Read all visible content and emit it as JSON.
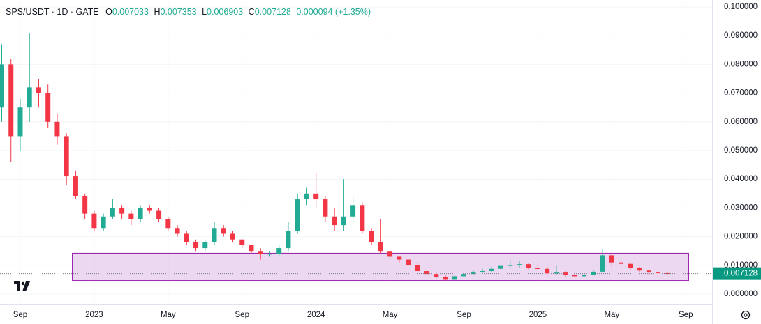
{
  "chart_data": {
    "type": "candlestick",
    "legend": {
      "symbol": "SPS/USDT · 1D · GATE",
      "fields": [
        {
          "key": "O",
          "value": "0.007033"
        },
        {
          "key": "H",
          "value": "0.007353"
        },
        {
          "key": "L",
          "value": "0.006903"
        },
        {
          "key": "C",
          "value": "0.007128"
        }
      ],
      "change": "0.000094 (+1.35%)"
    },
    "categories": [
      null,
      null,
      "Sep",
      null,
      null,
      null,
      null,
      null,
      null,
      null,
      "2023",
      null,
      null,
      null,
      null,
      null,
      null,
      null,
      "May",
      null,
      null,
      null,
      null,
      null,
      null,
      null,
      "Sep",
      null,
      null,
      null,
      null,
      null,
      null,
      null,
      "2024",
      null,
      null,
      null,
      null,
      null,
      null,
      null,
      "May",
      null,
      null,
      null,
      null,
      null,
      null,
      null,
      "Sep",
      null,
      null,
      null,
      null,
      null,
      null,
      null,
      "2025",
      null,
      null,
      null,
      null,
      null,
      null,
      null,
      "May",
      null,
      null,
      null,
      null,
      null,
      null,
      null,
      "Sep"
    ],
    "open": [
      0.065,
      0.08,
      0.055,
      0.065,
      0.072,
      0.07,
      0.06,
      0.055,
      0.041,
      0.034,
      0.028,
      0.023,
      0.027,
      0.03,
      0.028,
      0.026,
      0.03,
      0.029,
      0.026,
      0.023,
      0.021,
      0.018,
      0.016,
      0.018,
      0.023,
      0.021,
      0.019,
      0.017,
      0.015,
      0.014,
      0.014,
      0.016,
      0.022,
      0.033,
      0.035,
      0.033,
      0.027,
      0.024,
      0.027,
      0.031,
      0.022,
      0.018,
      0.015,
      0.013,
      0.012,
      0.01,
      0.008,
      0.007,
      0.006,
      0.005,
      0.0062,
      0.007,
      0.0078,
      0.008,
      0.0088,
      0.0098,
      0.0102,
      0.0104,
      0.009,
      0.0088,
      0.0072,
      0.0075,
      0.0066,
      0.0062,
      0.0068,
      0.0078,
      0.0135,
      0.011,
      0.0105,
      0.009,
      0.0082,
      0.0075,
      0.0073,
      null,
      null
    ],
    "high": [
      0.087,
      0.082,
      0.068,
      0.091,
      0.075,
      0.073,
      0.063,
      0.056,
      0.043,
      0.035,
      0.029,
      0.028,
      0.033,
      0.031,
      0.029,
      0.031,
      0.031,
      0.03,
      0.027,
      0.024,
      0.022,
      0.019,
      0.019,
      0.025,
      0.024,
      0.022,
      0.019,
      0.017,
      0.016,
      0.015,
      0.017,
      0.025,
      0.035,
      0.037,
      0.042,
      0.034,
      0.03,
      0.04,
      0.034,
      0.032,
      0.023,
      0.026,
      0.015,
      0.013,
      0.012,
      0.011,
      0.008,
      0.0075,
      0.0065,
      0.0068,
      0.0078,
      0.0085,
      0.0088,
      0.0095,
      0.011,
      0.0118,
      0.0115,
      0.0108,
      0.0105,
      0.0095,
      0.0098,
      0.008,
      0.007,
      0.0072,
      0.0085,
      0.0155,
      0.014,
      0.0125,
      0.011,
      0.0095,
      0.0085,
      0.0082,
      0.0078,
      null,
      null
    ],
    "low": [
      0.06,
      0.046,
      0.05,
      0.06,
      0.065,
      0.058,
      0.052,
      0.038,
      0.033,
      0.026,
      0.022,
      0.022,
      0.026,
      0.026,
      0.024,
      0.025,
      0.028,
      0.025,
      0.022,
      0.02,
      0.017,
      0.015,
      0.015,
      0.017,
      0.02,
      0.018,
      0.016,
      0.014,
      0.012,
      0.013,
      0.013,
      0.015,
      0.021,
      0.031,
      0.03,
      0.025,
      0.022,
      0.022,
      0.025,
      0.021,
      0.017,
      0.014,
      0.012,
      0.011,
      0.01,
      0.008,
      0.0065,
      0.0055,
      0.0044,
      0.0048,
      0.0058,
      0.0065,
      0.007,
      0.0075,
      0.0082,
      0.009,
      0.0092,
      0.0085,
      0.0082,
      0.0065,
      0.0068,
      0.006,
      0.0057,
      0.0058,
      0.0065,
      0.0075,
      0.0095,
      0.0095,
      0.0085,
      0.0078,
      0.0068,
      0.0068,
      0.0068,
      null,
      null
    ],
    "close": [
      0.08,
      0.055,
      0.065,
      0.072,
      0.07,
      0.06,
      0.055,
      0.041,
      0.034,
      0.028,
      0.023,
      0.027,
      0.03,
      0.028,
      0.026,
      0.03,
      0.029,
      0.026,
      0.023,
      0.021,
      0.018,
      0.016,
      0.018,
      0.023,
      0.021,
      0.019,
      0.017,
      0.015,
      0.014,
      0.014,
      0.016,
      0.022,
      0.033,
      0.035,
      0.033,
      0.027,
      0.024,
      0.027,
      0.031,
      0.022,
      0.018,
      0.015,
      0.013,
      0.012,
      0.01,
      0.008,
      0.007,
      0.006,
      0.005,
      0.0062,
      0.007,
      0.0078,
      0.008,
      0.0088,
      0.0098,
      0.0102,
      0.0104,
      0.009,
      0.0088,
      0.0072,
      0.0075,
      0.0066,
      0.0062,
      0.0068,
      0.0078,
      0.0135,
      0.011,
      0.0105,
      0.009,
      0.0082,
      0.0075,
      0.0073,
      0.007128,
      null,
      null
    ],
    "up_color": "#22ab94",
    "down_color": "#f23645",
    "zone": [
      0.0046,
      0.0141
    ],
    "zone_color": "#9c27b0",
    "ylim": [
      0,
      0.1
    ],
    "yticks": [
      {
        "value": 0,
        "label": "0.000000"
      },
      {
        "value": 0.01,
        "label": "0.010000"
      },
      {
        "value": 0.02,
        "label": "0.020000"
      },
      {
        "value": 0.03,
        "label": "0.030000"
      },
      {
        "value": 0.04,
        "label": "0.040000"
      },
      {
        "value": 0.05,
        "label": "0.050000"
      },
      {
        "value": 0.06,
        "label": "0.060000"
      },
      {
        "value": 0.07,
        "label": "0.070000"
      },
      {
        "value": 0.08,
        "label": "0.080000"
      },
      {
        "value": 0.09,
        "label": "0.090000"
      },
      {
        "value": 0.1,
        "label": "0.100000"
      }
    ],
    "grid": true
  }
}
